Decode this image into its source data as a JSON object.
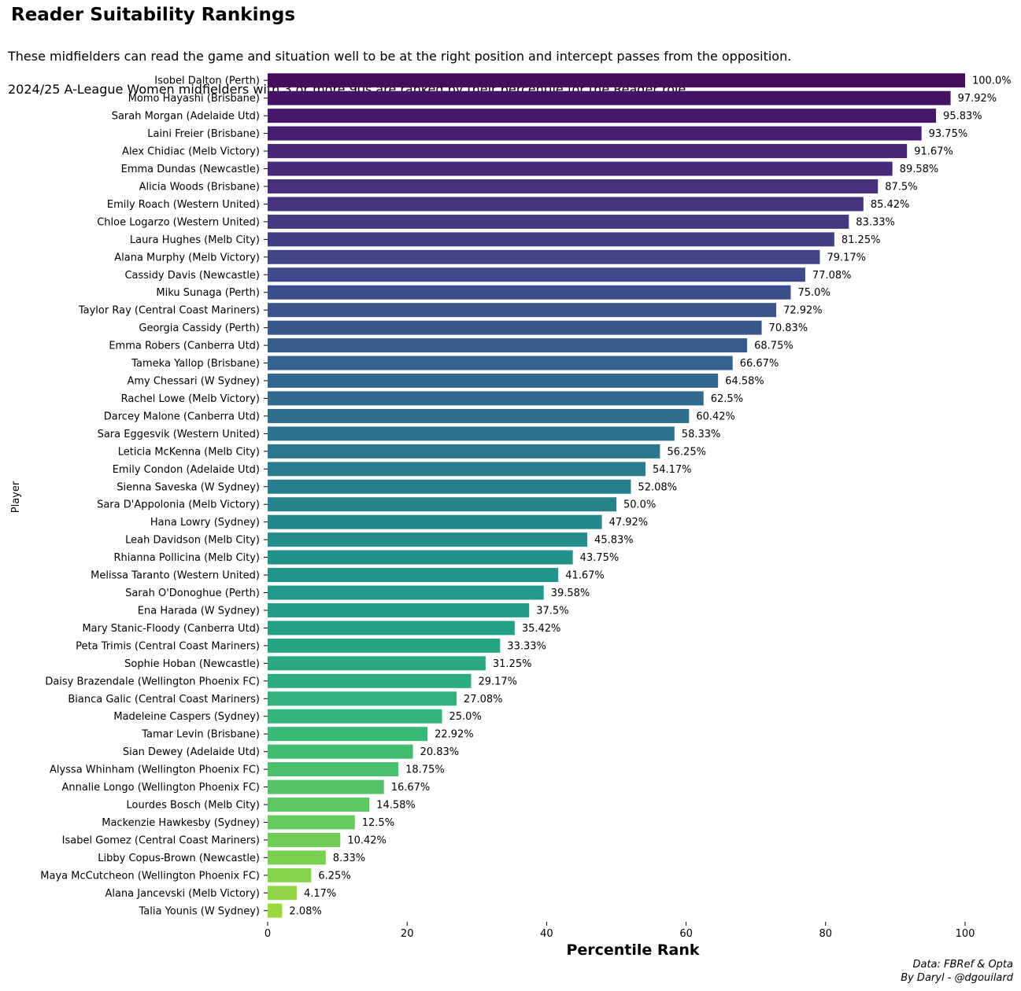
{
  "chart_data": {
    "type": "bar",
    "orientation": "horizontal",
    "title": "Reader Suitability Rankings",
    "subtitle_lines": [
      "These midfielders can read the game and situation well to be at the right position and intercept passes from the opposition.",
      "2024/25 A-League Women midfielders with 3 or more 90s are ranked by their percentile for the Reader role."
    ],
    "xlabel": "Percentile Rank",
    "ylabel": "Player",
    "xlim": [
      0,
      100
    ],
    "xticks": [
      0,
      20,
      40,
      60,
      80,
      100
    ],
    "grid": false,
    "colormap": "viridis",
    "categories": [
      "Isobel Dalton (Perth)",
      "Momo Hayashi (Brisbane)",
      "Sarah Morgan (Adelaide Utd)",
      "Laini Freier (Brisbane)",
      "Alex Chidiac (Melb Victory)",
      "Emma Dundas (Newcastle)",
      "Alicia Woods (Brisbane)",
      "Emily Roach (Western United)",
      "Chloe Logarzo (Western United)",
      "Laura Hughes (Melb City)",
      "Alana Murphy (Melb Victory)",
      "Cassidy Davis (Newcastle)",
      "Miku Sunaga (Perth)",
      "Taylor Ray (Central Coast Mariners)",
      "Georgia Cassidy (Perth)",
      "Emma Robers (Canberra Utd)",
      "Tameka Yallop (Brisbane)",
      "Amy Chessari (W Sydney)",
      "Rachel Lowe (Melb Victory)",
      "Darcey Malone (Canberra Utd)",
      "Sara Eggesvik (Western United)",
      "Leticia McKenna (Melb City)",
      "Emily Condon (Adelaide Utd)",
      "Sienna Saveska (W Sydney)",
      "Sara D'Appolonia (Melb Victory)",
      "Hana Lowry (Sydney)",
      "Leah Davidson (Melb City)",
      "Rhianna Pollicina (Melb City)",
      "Melissa Taranto (Western United)",
      "Sarah O'Donoghue (Perth)",
      "Ena Harada (W Sydney)",
      "Mary Stanic-Floody (Canberra Utd)",
      "Peta Trimis (Central Coast Mariners)",
      "Sophie Hoban (Newcastle)",
      "Daisy Brazendale (Wellington Phoenix FC)",
      "Bianca Galic (Central Coast Mariners)",
      "Madeleine Caspers (Sydney)",
      "Tamar Levin (Brisbane)",
      "Sian Dewey (Adelaide Utd)",
      "Alyssa Whinham (Wellington Phoenix FC)",
      "Annalie Longo (Wellington Phoenix FC)",
      "Lourdes Bosch (Melb City)",
      "Mackenzie Hawkesby (Sydney)",
      "Isabel Gomez (Central Coast Mariners)",
      "Libby Copus-Brown (Newcastle)",
      "Maya McCutcheon (Wellington Phoenix FC)",
      "Alana Jancevski (Melb Victory)",
      "Talia Younis (W Sydney)"
    ],
    "values": [
      100.0,
      97.92,
      95.83,
      93.75,
      91.67,
      89.58,
      87.5,
      85.42,
      83.33,
      81.25,
      79.17,
      77.08,
      75.0,
      72.92,
      70.83,
      68.75,
      66.67,
      64.58,
      62.5,
      60.42,
      58.33,
      56.25,
      54.17,
      52.08,
      50.0,
      47.92,
      45.83,
      43.75,
      41.67,
      39.58,
      37.5,
      35.42,
      33.33,
      31.25,
      29.17,
      27.08,
      25.0,
      22.92,
      20.83,
      18.75,
      16.67,
      14.58,
      12.5,
      10.42,
      8.33,
      6.25,
      4.17,
      2.08
    ],
    "value_labels": [
      "100.0%",
      "97.92%",
      "95.83%",
      "93.75%",
      "91.67%",
      "89.58%",
      "87.5%",
      "85.42%",
      "83.33%",
      "81.25%",
      "79.17%",
      "77.08%",
      "75.0%",
      "72.92%",
      "70.83%",
      "68.75%",
      "66.67%",
      "64.58%",
      "62.5%",
      "60.42%",
      "58.33%",
      "56.25%",
      "54.17%",
      "52.08%",
      "50.0%",
      "47.92%",
      "45.83%",
      "43.75%",
      "41.67%",
      "39.58%",
      "37.5%",
      "35.42%",
      "33.33%",
      "31.25%",
      "29.17%",
      "27.08%",
      "25.0%",
      "22.92%",
      "20.83%",
      "18.75%",
      "16.67%",
      "14.58%",
      "12.5%",
      "10.42%",
      "8.33%",
      "6.25%",
      "4.17%",
      "2.08%"
    ]
  },
  "credit": {
    "line1": "Data: FBRef & Opta",
    "line2": "By Daryl - @dgouilard"
  }
}
